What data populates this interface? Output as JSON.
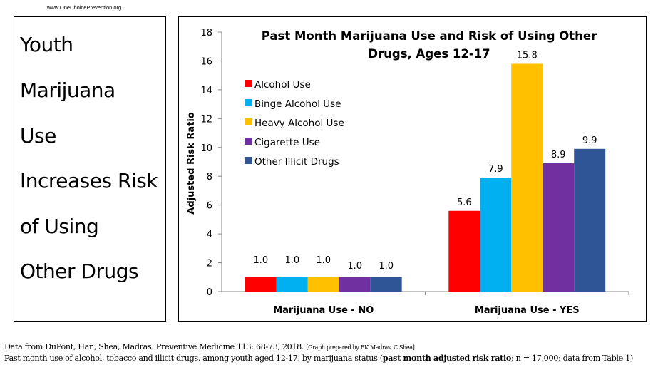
{
  "header": {
    "url": "www.OneChoicePrevention.org"
  },
  "left_panel": {
    "lines": [
      "Youth",
      "Marijuana",
      "Use",
      "Increases Risk",
      "of Using",
      "Other Drugs"
    ]
  },
  "chart_data": {
    "type": "bar",
    "title": "Past Month Marijuana Use and Risk of Using Other Drugs, Ages 12-17",
    "title_lines": [
      "Past Month Marijuana Use and Risk of Using Other",
      "Drugs, Ages 12-17"
    ],
    "xlabel": "",
    "ylabel": "Adjusted Risk Ratio",
    "ylim": [
      0,
      18
    ],
    "yticks": [
      0,
      2,
      4,
      6,
      8,
      10,
      12,
      14,
      16,
      18
    ],
    "grid": false,
    "legend_position": "left-inside",
    "categories": [
      "Marijuana Use - NO",
      "Marijuana Use - YES"
    ],
    "series": [
      {
        "name": "Alcohol Use",
        "color": "#FF0000",
        "values": [
          1.0,
          5.6
        ]
      },
      {
        "name": "Binge Alcohol Use",
        "color": "#00B0F0",
        "values": [
          1.0,
          7.9
        ]
      },
      {
        "name": "Heavy Alcohol Use",
        "color": "#FFC000",
        "values": [
          1.0,
          15.8
        ]
      },
      {
        "name": "Cigarette Use",
        "color": "#7030A0",
        "values": [
          1.0,
          8.9
        ]
      },
      {
        "name": "Other Illicit Drugs",
        "color": "#2F5597",
        "values": [
          1.0,
          9.9
        ]
      }
    ],
    "data_labels": [
      [
        "1.0",
        "1.0",
        "1.0",
        "1.0",
        "1.0"
      ],
      [
        "5.6",
        "7.9",
        "15.8",
        "8.9",
        "9.9"
      ]
    ]
  },
  "footer": {
    "line1_main": "Data from DuPont, Han, Shea, Madras. Preventive Medicine 113: 68-73, 2018. ",
    "line1_small": "[Graph prepared by BK Madras, C Shea]",
    "line2_pre": "Past month use of alcohol, tobacco and illicit drugs, among youth aged 12-17, by marijuana status (",
    "line2_bold": "past month adjusted risk ratio",
    "line2_post": "; n = 17,000; data from Table 1)"
  }
}
